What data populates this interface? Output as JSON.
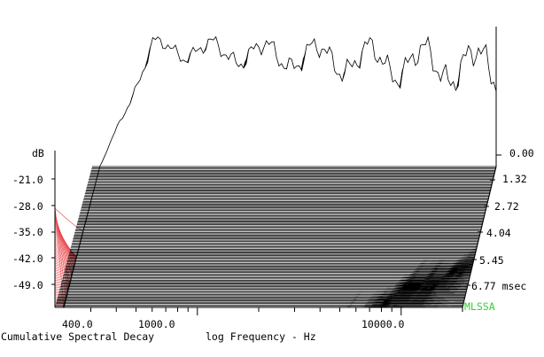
{
  "chart_data": {
    "type": "waterfall",
    "title": "Cumulative Spectral Decay",
    "xlabel": "log Frequency - Hz",
    "ylabel": "dB",
    "zlabel": "msec",
    "x_scale": "log",
    "x_ticks": [
      {
        "value": 400,
        "label": "400.0"
      },
      {
        "value": 1000,
        "label": "1000.0"
      },
      {
        "value": 10000,
        "label": "10000.0"
      }
    ],
    "y_ticks": [
      {
        "value": -21,
        "label": "-21.0"
      },
      {
        "value": -28,
        "label": "-28.0"
      },
      {
        "value": -35,
        "label": "-35.0"
      },
      {
        "value": -42,
        "label": "-42.0"
      },
      {
        "value": -49,
        "label": "-49.0"
      }
    ],
    "time_ticks": [
      {
        "value": 0.0,
        "label": "0.00"
      },
      {
        "value": 1.32,
        "label": "1.32"
      },
      {
        "value": 2.72,
        "label": "2.72"
      },
      {
        "value": 4.04,
        "label": "4.04"
      },
      {
        "value": 5.45,
        "label": "5.45"
      },
      {
        "value": 6.77,
        "label": "6.77 msec"
      }
    ],
    "time_range_msec": [
      0,
      6.77
    ],
    "brand_label": "MLSSA",
    "colors": {
      "axes": "#000000",
      "lowfreq_hatch": "#e8474d",
      "brand": "#2fd22f",
      "background": "#ffffff"
    }
  }
}
